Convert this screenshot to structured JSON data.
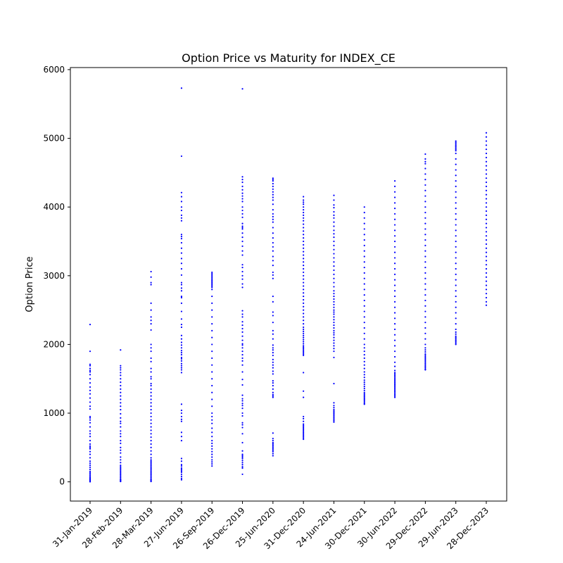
{
  "chart_data": {
    "type": "scatter",
    "title": "Option Price vs Maturity for INDEX_CE",
    "xlabel": "",
    "ylabel": "Option Price",
    "categories": [
      "31-Jan-2019",
      "28-Feb-2019",
      "28-Mar-2019",
      "27-Jun-2019",
      "26-Sep-2019",
      "26-Dec-2019",
      "25-Jun-2020",
      "31-Dec-2020",
      "24-Jun-2021",
      "30-Dec-2021",
      "30-Jun-2022",
      "29-Dec-2022",
      "29-Jun-2023",
      "28-Dec-2023"
    ],
    "ylim": [
      -280,
      6030
    ],
    "yticks": [
      0,
      1000,
      2000,
      3000,
      4000,
      5000,
      6000
    ],
    "grid": false,
    "marker_color": "#0000ff",
    "series": [
      {
        "values": [
          [
            2290,
            1900,
            1710,
            1690,
            1650,
            1620,
            1600,
            1560,
            1500,
            1440,
            1380,
            1330,
            1280,
            1220,
            1160,
            1100,
            1060,
            950,
            930,
            900,
            860,
            800,
            740,
            700,
            660,
            600,
            550,
            520,
            500,
            480,
            440,
            400,
            350,
            300,
            270,
            240,
            210,
            180,
            150,
            130,
            110,
            90,
            70,
            55,
            40,
            30,
            20,
            12,
            5,
            2
          ],
          [
            1920,
            1690,
            1660,
            1630,
            1590,
            1550,
            1500,
            1450,
            1400,
            1350,
            1300,
            1250,
            1200,
            1150,
            1100,
            1050,
            990,
            930,
            880,
            850,
            800,
            740,
            700,
            660,
            600,
            560,
            500,
            460,
            420,
            360,
            320,
            280,
            240,
            220,
            200,
            180,
            160,
            140,
            120,
            100,
            80,
            60,
            40,
            30,
            20,
            10,
            5
          ],
          [
            3060,
            2980,
            2900,
            2870,
            2600,
            2500,
            2400,
            2350,
            2300,
            2210,
            2000,
            1950,
            1900,
            1800,
            1750,
            1650,
            1600,
            1530,
            1500,
            1430,
            1400,
            1350,
            1300,
            1250,
            1200,
            1150,
            1100,
            1050,
            1000,
            950,
            900,
            850,
            800,
            750,
            700,
            650,
            600,
            550,
            500,
            450,
            400,
            350,
            320,
            300,
            280,
            260,
            240,
            220,
            200,
            180,
            160,
            140,
            120,
            100,
            80,
            60,
            40,
            30,
            20,
            10,
            5
          ],
          [
            5730,
            4740,
            4210,
            4150,
            4080,
            4000,
            3950,
            3880,
            3840,
            3800,
            3600,
            3570,
            3540,
            3480,
            3400,
            3330,
            3250,
            3180,
            3100,
            3010,
            2900,
            2870,
            2820,
            2780,
            2700,
            2680,
            2600,
            2480,
            2370,
            2290,
            2250,
            2130,
            2080,
            2030,
            1990,
            1950,
            1910,
            1880,
            1850,
            1810,
            1790,
            1760,
            1720,
            1690,
            1660,
            1630,
            1590,
            1130,
            1040,
            1000,
            950,
            910,
            880,
            720,
            660,
            600,
            340,
            300,
            250,
            230,
            200,
            180,
            160,
            140,
            110,
            80,
            50,
            30
          ],
          [
            3050,
            3030,
            3010,
            2990,
            2970,
            2950,
            2930,
            2910,
            2890,
            2870,
            2850,
            2830,
            2800,
            2700,
            2600,
            2500,
            2400,
            2300,
            2200,
            2100,
            2000,
            1900,
            1800,
            1700,
            1600,
            1500,
            1400,
            1300,
            1200,
            1100,
            1000,
            950,
            900,
            850,
            780,
            720,
            660,
            600,
            560,
            520,
            480,
            440,
            400,
            360,
            320,
            290,
            260,
            230
          ],
          [
            5720,
            4440,
            4400,
            4360,
            4300,
            4250,
            4200,
            4160,
            4120,
            4080,
            4000,
            3950,
            3900,
            3850,
            3760,
            3720,
            3700,
            3680,
            3620,
            3560,
            3500,
            3430,
            3360,
            3300,
            3160,
            3120,
            3060,
            3000,
            2950,
            2880,
            2830,
            2490,
            2440,
            2400,
            2330,
            2280,
            2230,
            2180,
            2120,
            2060,
            2010,
            1990,
            1950,
            1900,
            1850,
            1800,
            1760,
            1700,
            1600,
            1490,
            1410,
            1260,
            1210,
            1180,
            1140,
            1110,
            1070,
            1000,
            960,
            860,
            830,
            790,
            700,
            570,
            450,
            400,
            380,
            360,
            340,
            310,
            280,
            250,
            220,
            200,
            110
          ],
          [
            4420,
            4400,
            4380,
            4340,
            4300,
            4260,
            4220,
            4180,
            4140,
            4100,
            4040,
            3960,
            3900,
            3860,
            3820,
            3780,
            3700,
            3620,
            3550,
            3480,
            3420,
            3360,
            3280,
            3220,
            3150,
            3050,
            3010,
            2960,
            2700,
            2620,
            2470,
            2420,
            2320,
            2200,
            2150,
            2080,
            1990,
            1950,
            1920,
            1880,
            1840,
            1780,
            1740,
            1700,
            1660,
            1610,
            1570,
            1470,
            1440,
            1400,
            1350,
            1300,
            1270,
            1250,
            1230,
            710,
            630,
            600,
            570,
            560,
            540,
            520,
            500,
            480,
            460,
            440,
            410,
            380
          ],
          [
            4150,
            4100,
            4070,
            4040,
            4000,
            3960,
            3920,
            3880,
            3840,
            3800,
            3750,
            3700,
            3650,
            3600,
            3550,
            3500,
            3450,
            3400,
            3350,
            3300,
            3250,
            3200,
            3150,
            3100,
            3050,
            3000,
            2950,
            2900,
            2850,
            2800,
            2750,
            2700,
            2650,
            2600,
            2550,
            2500,
            2450,
            2400,
            2350,
            2300,
            2250,
            2220,
            2190,
            2160,
            2130,
            2100,
            2070,
            2040,
            2010,
            1980,
            1960,
            1940,
            1920,
            1900,
            1880,
            1860,
            1840,
            1590,
            1320,
            1230,
            950,
            920,
            880,
            840,
            820,
            800,
            780,
            760,
            740,
            720,
            700,
            680,
            660,
            640,
            620
          ],
          [
            4170,
            4100,
            4030,
            3990,
            3930,
            3880,
            3840,
            3780,
            3720,
            3660,
            3610,
            3560,
            3500,
            3440,
            3380,
            3320,
            3260,
            3200,
            3140,
            3080,
            3020,
            2960,
            2900,
            2840,
            2780,
            2740,
            2700,
            2660,
            2620,
            2580,
            2540,
            2500,
            2470,
            2440,
            2400,
            2360,
            2320,
            2280,
            2240,
            2200,
            2170,
            2140,
            2100,
            2060,
            2020,
            1980,
            1940,
            1900,
            1810,
            1430,
            1150,
            1110,
            1080,
            1050,
            1030,
            1010,
            990,
            970,
            950,
            930,
            910,
            890,
            870
          ],
          [
            4000,
            3920,
            3840,
            3760,
            3680,
            3600,
            3520,
            3440,
            3360,
            3280,
            3200,
            3120,
            3040,
            2960,
            2880,
            2800,
            2720,
            2640,
            2560,
            2480,
            2400,
            2320,
            2240,
            2160,
            2080,
            2000,
            1950,
            1900,
            1850,
            1800,
            1750,
            1700,
            1650,
            1600,
            1560,
            1520,
            1480,
            1450,
            1420,
            1390,
            1360,
            1330,
            1300,
            1280,
            1260,
            1240,
            1220,
            1200,
            1180,
            1160,
            1140,
            1130
          ],
          [
            4380,
            4300,
            4220,
            4140,
            4060,
            3980,
            3900,
            3820,
            3740,
            3660,
            3580,
            3500,
            3420,
            3340,
            3260,
            3180,
            3100,
            3020,
            2940,
            2860,
            2780,
            2700,
            2620,
            2540,
            2460,
            2380,
            2300,
            2220,
            2140,
            2060,
            1980,
            1900,
            1820,
            1740,
            1680,
            1620,
            1590,
            1570,
            1550,
            1530,
            1510,
            1490,
            1470,
            1450,
            1430,
            1410,
            1390,
            1370,
            1350,
            1330,
            1310,
            1290,
            1270,
            1250,
            1230
          ],
          [
            4770,
            4700,
            4660,
            4630,
            4560,
            4480,
            4400,
            4320,
            4240,
            4160,
            4080,
            4000,
            3920,
            3840,
            3760,
            3680,
            3600,
            3520,
            3440,
            3360,
            3280,
            3200,
            3120,
            3040,
            2960,
            2880,
            2800,
            2720,
            2640,
            2560,
            2480,
            2400,
            2320,
            2240,
            2160,
            2080,
            2000,
            1950,
            1920,
            1890,
            1860,
            1840,
            1820,
            1800,
            1780,
            1760,
            1740,
            1720,
            1700,
            1680,
            1660,
            1640,
            1630
          ],
          [
            4960,
            4940,
            4920,
            4900,
            4880,
            4860,
            4840,
            4820,
            4780,
            4700,
            4620,
            4540,
            4460,
            4380,
            4300,
            4220,
            4140,
            4060,
            3980,
            3900,
            3820,
            3740,
            3660,
            3580,
            3500,
            3420,
            3340,
            3260,
            3180,
            3100,
            3020,
            2940,
            2860,
            2780,
            2700,
            2620,
            2540,
            2460,
            2380,
            2300,
            2220,
            2180,
            2150,
            2120,
            2100,
            2080,
            2060,
            2040,
            2020,
            2000
          ],
          [
            5080,
            5020,
            4960,
            4900,
            4840,
            4780,
            4720,
            4660,
            4600,
            4540,
            4480,
            4420,
            4360,
            4300,
            4240,
            4180,
            4120,
            4060,
            4000,
            3940,
            3880,
            3820,
            3760,
            3700,
            3640,
            3580,
            3520,
            3460,
            3400,
            3340,
            3280,
            3220,
            3160,
            3100,
            3040,
            2980,
            2920,
            2860,
            2800,
            2740,
            2680,
            2620,
            2570
          ]
        ]
      }
    ]
  }
}
